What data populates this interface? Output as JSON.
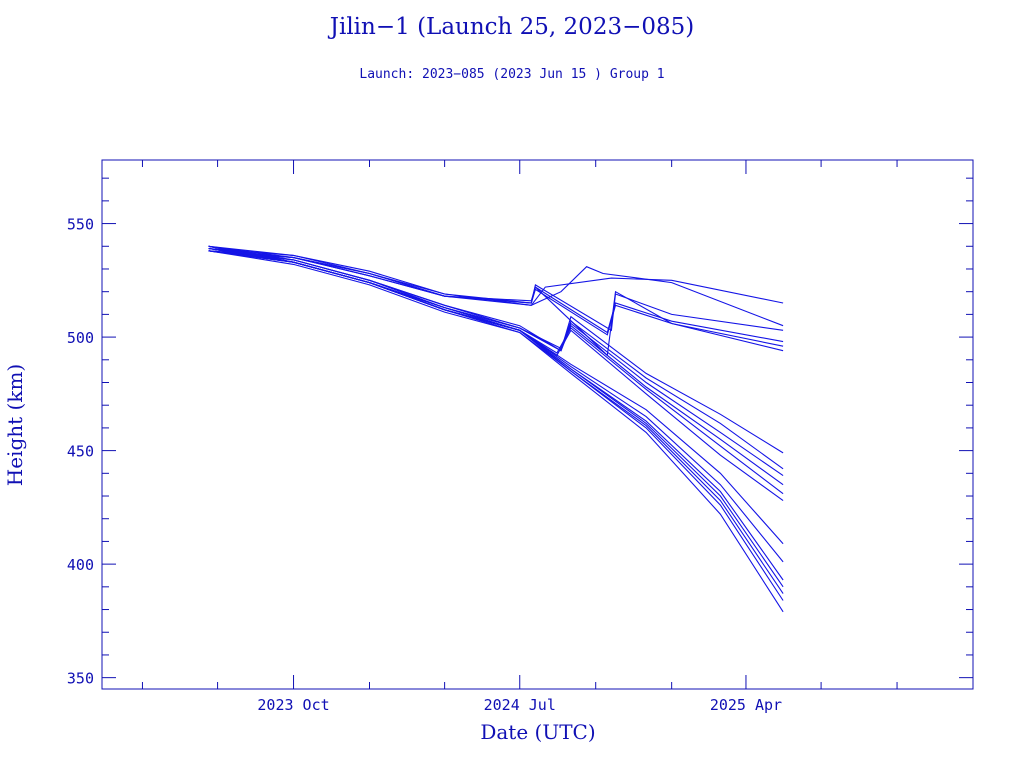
{
  "chart_data": {
    "type": "line",
    "title": "Jilin−1 (Launch 25, 2023−085)",
    "subtitle": "Launch: 2023−085  (2023 Jun 15 )  Group 1",
    "xlabel": "Date (UTC)",
    "ylabel": "Height (km)",
    "xlim": [
      "2023-02-11",
      "2026-01-01"
    ],
    "ylim": [
      345,
      578
    ],
    "x_ticks": [
      {
        "date": "2023-10-01",
        "label": "2023 Oct"
      },
      {
        "date": "2024-07-01",
        "label": "2024 Jul"
      },
      {
        "date": "2025-04-01",
        "label": "2025 Apr"
      }
    ],
    "y_ticks": [
      350,
      400,
      450,
      500,
      550
    ],
    "grid": false,
    "line_color": "#1414e6",
    "series": [
      {
        "values": [
          [
            "2023-06-20",
            538
          ],
          [
            "2023-10-01",
            535
          ],
          [
            "2024-01-01",
            528
          ],
          [
            "2024-04-01",
            518
          ],
          [
            "2024-07-15",
            514
          ],
          [
            "2024-08-01",
            522
          ],
          [
            "2024-10-20",
            526
          ],
          [
            "2025-01-01",
            525
          ],
          [
            "2025-05-16",
            515
          ]
        ]
      },
      {
        "values": [
          [
            "2023-06-20",
            539
          ],
          [
            "2023-10-01",
            536
          ],
          [
            "2024-01-01",
            529
          ],
          [
            "2024-04-01",
            519
          ],
          [
            "2024-07-15",
            514
          ],
          [
            "2024-08-20",
            520
          ],
          [
            "2024-09-20",
            531
          ],
          [
            "2024-10-10",
            528
          ],
          [
            "2025-01-01",
            524
          ],
          [
            "2025-05-16",
            505
          ]
        ]
      },
      {
        "values": [
          [
            "2023-06-20",
            540
          ],
          [
            "2023-10-01",
            535
          ],
          [
            "2024-01-01",
            527
          ],
          [
            "2024-04-01",
            518
          ],
          [
            "2024-07-15",
            515
          ],
          [
            "2024-07-20",
            523
          ],
          [
            "2024-10-20",
            503
          ],
          [
            "2024-10-25",
            519
          ],
          [
            "2025-01-01",
            510
          ],
          [
            "2025-05-16",
            503
          ]
        ]
      },
      {
        "values": [
          [
            "2023-06-20",
            538
          ],
          [
            "2023-10-01",
            535
          ],
          [
            "2024-01-01",
            528
          ],
          [
            "2024-04-01",
            518
          ],
          [
            "2024-07-15",
            516
          ],
          [
            "2024-07-20",
            522
          ],
          [
            "2024-10-15",
            502
          ],
          [
            "2024-10-25",
            515
          ],
          [
            "2025-01-01",
            507
          ],
          [
            "2025-05-16",
            498
          ]
        ]
      },
      {
        "values": [
          [
            "2023-06-20",
            540
          ],
          [
            "2023-10-01",
            536
          ],
          [
            "2024-01-01",
            528
          ],
          [
            "2024-04-01",
            519
          ],
          [
            "2024-07-15",
            515
          ],
          [
            "2024-07-20",
            521
          ],
          [
            "2024-10-15",
            501
          ],
          [
            "2024-10-25",
            514
          ],
          [
            "2025-01-01",
            506
          ],
          [
            "2025-05-16",
            496
          ]
        ]
      },
      {
        "values": [
          [
            "2023-06-20",
            539
          ],
          [
            "2023-10-01",
            535
          ],
          [
            "2024-01-01",
            527
          ],
          [
            "2024-04-01",
            518
          ],
          [
            "2024-07-15",
            515
          ],
          [
            "2024-07-20",
            522
          ],
          [
            "2024-10-15",
            492
          ],
          [
            "2024-10-25",
            520
          ],
          [
            "2025-01-01",
            506
          ],
          [
            "2025-05-16",
            494
          ]
        ]
      },
      {
        "values": [
          [
            "2023-06-20",
            538
          ],
          [
            "2023-10-01",
            534
          ],
          [
            "2024-01-01",
            525
          ],
          [
            "2024-04-01",
            514
          ],
          [
            "2024-07-01",
            505
          ],
          [
            "2024-08-20",
            494
          ],
          [
            "2024-09-01",
            509
          ],
          [
            "2024-12-01",
            484
          ],
          [
            "2025-03-01",
            466
          ],
          [
            "2025-05-16",
            449
          ]
        ]
      },
      {
        "values": [
          [
            "2023-06-20",
            539
          ],
          [
            "2023-10-01",
            534
          ],
          [
            "2024-01-01",
            525
          ],
          [
            "2024-04-01",
            514
          ],
          [
            "2024-07-01",
            504
          ],
          [
            "2024-08-20",
            495
          ],
          [
            "2024-09-01",
            507
          ],
          [
            "2024-12-01",
            482
          ],
          [
            "2025-03-01",
            462
          ],
          [
            "2025-05-16",
            442
          ]
        ]
      },
      {
        "values": [
          [
            "2023-06-20",
            540
          ],
          [
            "2023-10-01",
            534
          ],
          [
            "2024-01-01",
            525
          ],
          [
            "2024-04-01",
            513
          ],
          [
            "2024-07-01",
            504
          ],
          [
            "2024-08-20",
            494
          ],
          [
            "2024-09-01",
            506
          ],
          [
            "2024-12-01",
            480
          ],
          [
            "2025-03-01",
            458
          ],
          [
            "2025-05-16",
            439
          ]
        ]
      },
      {
        "values": [
          [
            "2023-06-20",
            538
          ],
          [
            "2023-10-01",
            533
          ],
          [
            "2024-01-01",
            524
          ],
          [
            "2024-04-01",
            513
          ],
          [
            "2024-07-01",
            504
          ],
          [
            "2024-08-20",
            494
          ],
          [
            "2024-09-01",
            505
          ],
          [
            "2024-12-01",
            478
          ],
          [
            "2025-03-01",
            455
          ],
          [
            "2025-05-16",
            435
          ]
        ]
      },
      {
        "values": [
          [
            "2023-06-20",
            539
          ],
          [
            "2023-10-01",
            533
          ],
          [
            "2024-01-01",
            524
          ],
          [
            "2024-04-01",
            513
          ],
          [
            "2024-07-01",
            503
          ],
          [
            "2024-08-15",
            493
          ],
          [
            "2024-09-01",
            504
          ],
          [
            "2024-12-01",
            477
          ],
          [
            "2025-03-01",
            452
          ],
          [
            "2025-05-16",
            431
          ]
        ]
      },
      {
        "values": [
          [
            "2023-06-20",
            540
          ],
          [
            "2023-10-01",
            533
          ],
          [
            "2024-01-01",
            524
          ],
          [
            "2024-04-01",
            513
          ],
          [
            "2024-07-01",
            503
          ],
          [
            "2024-08-15",
            492
          ],
          [
            "2024-09-01",
            503
          ],
          [
            "2024-12-01",
            475
          ],
          [
            "2025-03-01",
            448
          ],
          [
            "2025-05-16",
            428
          ]
        ]
      },
      {
        "values": [
          [
            "2023-06-20",
            538
          ],
          [
            "2023-10-01",
            533
          ],
          [
            "2024-01-01",
            524
          ],
          [
            "2024-04-01",
            512
          ],
          [
            "2024-07-01",
            503
          ],
          [
            "2024-09-01",
            488
          ],
          [
            "2024-12-01",
            468
          ],
          [
            "2025-03-01",
            440
          ],
          [
            "2025-05-16",
            409
          ]
        ]
      },
      {
        "values": [
          [
            "2023-06-20",
            539
          ],
          [
            "2023-10-01",
            533
          ],
          [
            "2024-01-01",
            524
          ],
          [
            "2024-04-01",
            512
          ],
          [
            "2024-07-01",
            503
          ],
          [
            "2024-09-01",
            487
          ],
          [
            "2024-12-01",
            465
          ],
          [
            "2025-03-01",
            435
          ],
          [
            "2025-05-16",
            401
          ]
        ]
      },
      {
        "values": [
          [
            "2023-06-20",
            540
          ],
          [
            "2023-10-01",
            533
          ],
          [
            "2024-01-01",
            524
          ],
          [
            "2024-04-01",
            512
          ],
          [
            "2024-07-01",
            503
          ],
          [
            "2024-09-01",
            486
          ],
          [
            "2024-12-01",
            463
          ],
          [
            "2025-03-01",
            432
          ],
          [
            "2025-05-16",
            393
          ]
        ]
      },
      {
        "values": [
          [
            "2023-06-20",
            538
          ],
          [
            "2023-10-01",
            533
          ],
          [
            "2024-01-01",
            524
          ],
          [
            "2024-04-01",
            512
          ],
          [
            "2024-07-01",
            503
          ],
          [
            "2024-09-01",
            486
          ],
          [
            "2024-12-01",
            462
          ],
          [
            "2025-03-01",
            430
          ],
          [
            "2025-05-16",
            390
          ]
        ]
      },
      {
        "values": [
          [
            "2023-06-20",
            539
          ],
          [
            "2023-10-01",
            533
          ],
          [
            "2024-01-01",
            524
          ],
          [
            "2024-04-01",
            512
          ],
          [
            "2024-07-01",
            503
          ],
          [
            "2024-09-01",
            485
          ],
          [
            "2024-12-01",
            461
          ],
          [
            "2025-03-01",
            428
          ],
          [
            "2025-05-16",
            387
          ]
        ]
      },
      {
        "values": [
          [
            "2023-06-20",
            540
          ],
          [
            "2023-10-01",
            533
          ],
          [
            "2024-01-01",
            524
          ],
          [
            "2024-04-01",
            512
          ],
          [
            "2024-07-01",
            502
          ],
          [
            "2024-09-01",
            485
          ],
          [
            "2024-12-01",
            460
          ],
          [
            "2025-03-01",
            426
          ],
          [
            "2025-05-16",
            384
          ]
        ]
      },
      {
        "values": [
          [
            "2023-06-20",
            538
          ],
          [
            "2023-10-01",
            532
          ],
          [
            "2024-01-01",
            523
          ],
          [
            "2024-04-01",
            511
          ],
          [
            "2024-07-01",
            502
          ],
          [
            "2024-09-01",
            484
          ],
          [
            "2024-12-01",
            458
          ],
          [
            "2025-03-01",
            422
          ],
          [
            "2025-05-16",
            379
          ]
        ]
      }
    ]
  }
}
